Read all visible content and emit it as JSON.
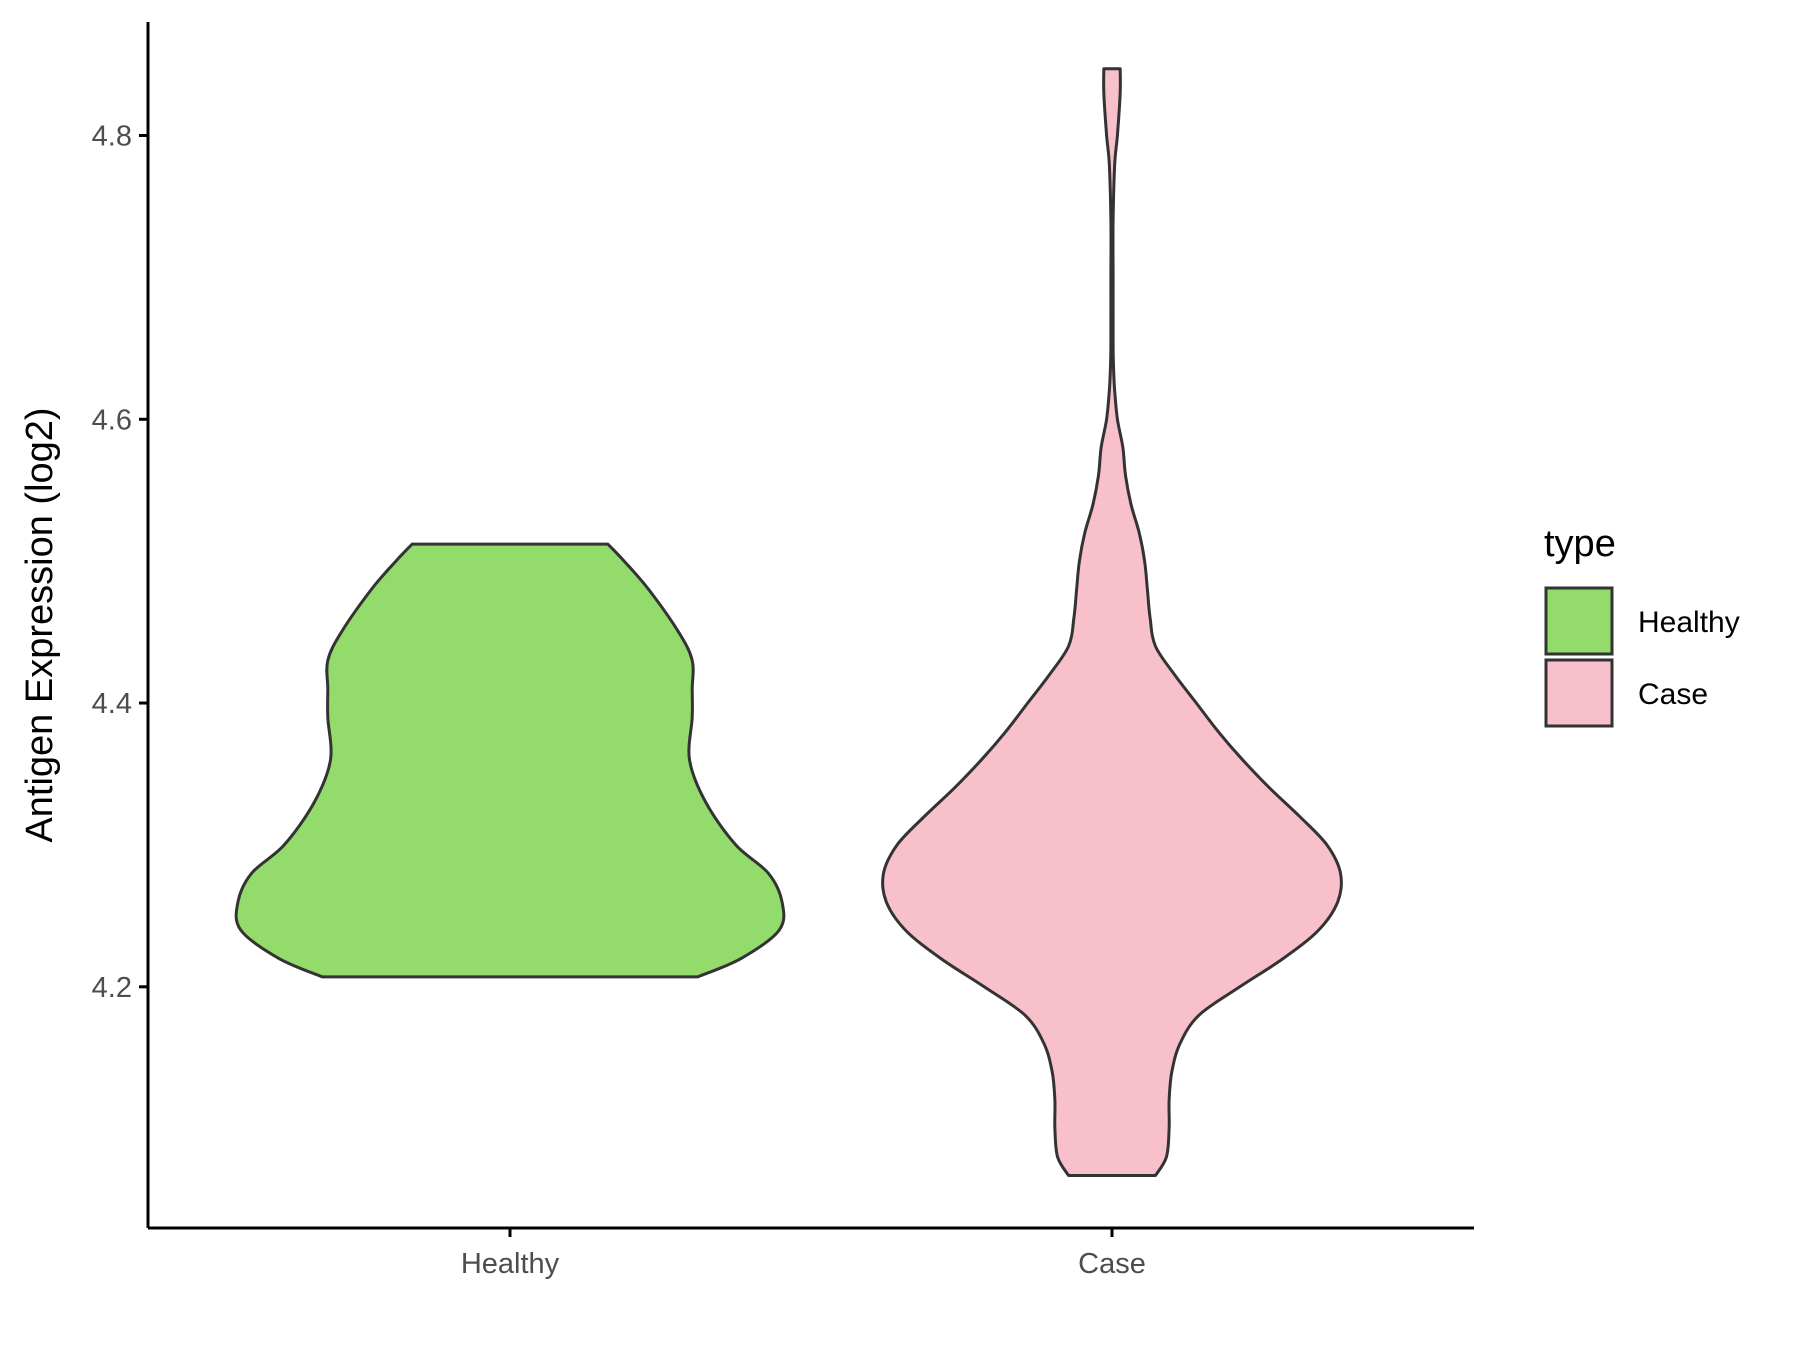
{
  "chart_data": {
    "type": "violin",
    "title": "",
    "xlabel": "",
    "ylabel": "Antigen Expression (log2)",
    "ylim": [
      4.03,
      4.88
    ],
    "yticks": [
      "4.2",
      "4.4",
      "4.6",
      "4.8"
    ],
    "ytick_values": [
      4.2,
      4.4,
      4.6,
      4.8
    ],
    "categories": [
      "Healthy",
      "Case"
    ],
    "legend": {
      "title": "type",
      "position": "right",
      "items": [
        {
          "label": "Healthy",
          "color": "#93dc6b"
        },
        {
          "label": "Case",
          "color": "#f8c0cb"
        }
      ]
    },
    "series": [
      {
        "category": "Healthy",
        "color": "#93dc6b",
        "min": 4.207,
        "max": 4.512,
        "density": [
          [
            4.207,
            0.69
          ],
          [
            4.22,
            0.85
          ],
          [
            4.24,
            0.99
          ],
          [
            4.26,
            1.0
          ],
          [
            4.28,
            0.95
          ],
          [
            4.3,
            0.83
          ],
          [
            4.33,
            0.72
          ],
          [
            4.36,
            0.66
          ],
          [
            4.39,
            0.67
          ],
          [
            4.41,
            0.67
          ],
          [
            4.43,
            0.67
          ],
          [
            4.45,
            0.62
          ],
          [
            4.48,
            0.51
          ],
          [
            4.5,
            0.42
          ],
          [
            4.512,
            0.36
          ]
        ]
      },
      {
        "category": "Case",
        "color": "#f8c0cb",
        "min": 4.067,
        "max": 4.847,
        "density": [
          [
            4.067,
            0.16
          ],
          [
            4.08,
            0.2
          ],
          [
            4.1,
            0.21
          ],
          [
            4.12,
            0.21
          ],
          [
            4.14,
            0.22
          ],
          [
            4.16,
            0.25
          ],
          [
            4.18,
            0.32
          ],
          [
            4.2,
            0.47
          ],
          [
            4.22,
            0.63
          ],
          [
            4.24,
            0.76
          ],
          [
            4.26,
            0.83
          ],
          [
            4.28,
            0.84
          ],
          [
            4.3,
            0.79
          ],
          [
            4.32,
            0.69
          ],
          [
            4.34,
            0.58
          ],
          [
            4.36,
            0.48
          ],
          [
            4.38,
            0.39
          ],
          [
            4.4,
            0.31
          ],
          [
            4.42,
            0.23
          ],
          [
            4.44,
            0.16
          ],
          [
            4.46,
            0.14
          ],
          [
            4.48,
            0.13
          ],
          [
            4.5,
            0.12
          ],
          [
            4.52,
            0.1
          ],
          [
            4.54,
            0.07
          ],
          [
            4.56,
            0.05
          ],
          [
            4.58,
            0.04
          ],
          [
            4.6,
            0.02
          ],
          [
            4.62,
            0.01
          ],
          [
            4.64,
            0.005
          ],
          [
            4.66,
            0.004
          ],
          [
            4.7,
            0.004
          ],
          [
            4.74,
            0.004
          ],
          [
            4.78,
            0.01
          ],
          [
            4.8,
            0.02
          ],
          [
            4.83,
            0.03
          ],
          [
            4.847,
            0.03
          ]
        ]
      }
    ]
  }
}
